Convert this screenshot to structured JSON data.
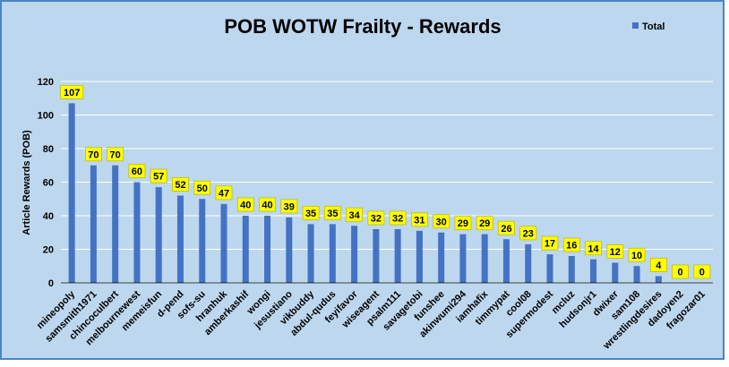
{
  "colors": {
    "background": "#bdd7ee",
    "bar": "#4472c4",
    "label_fill": "#ffff00",
    "label_stroke": "#bfbf00",
    "text": "#000000",
    "gridline": "#ffffff",
    "border": "#4a86c5"
  },
  "chart_data": {
    "type": "bar",
    "title": "POB WOTW Frailty - Rewards",
    "ylabel": "Article Rewards (POB)",
    "xlabel": "",
    "ylim": [
      0,
      120
    ],
    "yticks": [
      0,
      20,
      40,
      60,
      80,
      100,
      120
    ],
    "grid": true,
    "legend": "top-right",
    "categories": [
      "mineopoly",
      "samsmith1971",
      "chincoculbert",
      "melbournewest",
      "memeisfun",
      "d-pend",
      "sofs-su",
      "hranhuk",
      "amberkashif",
      "wongi",
      "jesustiano",
      "vikbuddy",
      "abdul-qudus",
      "feyifavor",
      "wiseagent",
      "psalm111",
      "savagetobi",
      "funshee",
      "akinwumi294",
      "iamhafix",
      "timmypat",
      "cool08",
      "supermodest",
      "mcluz",
      "hudsonjr1",
      "dwixer",
      "sam108",
      "wrestlingdesires",
      "dadoyen2",
      "fragozar01"
    ],
    "series": [
      {
        "name": "Total",
        "values": [
          107,
          70,
          70,
          60,
          57,
          52,
          50,
          47,
          40,
          40,
          39,
          35,
          35,
          34,
          32,
          32,
          31,
          30,
          29,
          29,
          26,
          23,
          17,
          16,
          14,
          12,
          10,
          4,
          0,
          0
        ]
      }
    ]
  }
}
